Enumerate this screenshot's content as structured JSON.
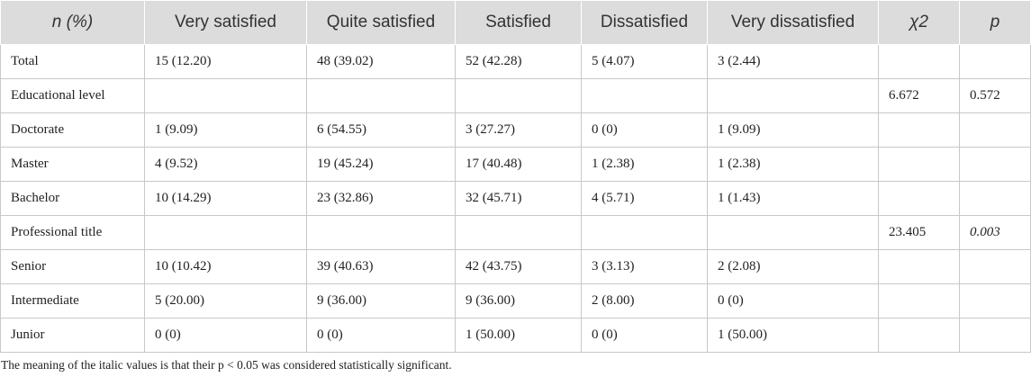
{
  "table": {
    "headers": [
      "n (%)",
      "Very satisfied",
      "Quite satisfied",
      "Satisfied",
      "Dissatisfied",
      "Very dissatisfied",
      "χ2",
      "p"
    ],
    "header_italic": [
      true,
      false,
      false,
      false,
      false,
      false,
      true,
      true
    ],
    "rows": [
      [
        "Total",
        "15 (12.20)",
        "48 (39.02)",
        "52 (42.28)",
        "5 (4.07)",
        "3 (2.44)",
        "",
        ""
      ],
      [
        "Educational level",
        "",
        "",
        "",
        "",
        "",
        "6.672",
        "0.572"
      ],
      [
        "Doctorate",
        "1 (9.09)",
        "6 (54.55)",
        "3 (27.27)",
        "0 (0)",
        "1 (9.09)",
        "",
        ""
      ],
      [
        "Master",
        "4 (9.52)",
        "19 (45.24)",
        "17 (40.48)",
        "1 (2.38)",
        "1 (2.38)",
        "",
        ""
      ],
      [
        "Bachelor",
        "10 (14.29)",
        "23 (32.86)",
        "32 (45.71)",
        "4 (5.71)",
        "1 (1.43)",
        "",
        ""
      ],
      [
        "Professional title",
        "",
        "",
        "",
        "",
        "",
        "23.405",
        "0.003"
      ],
      [
        "Senior",
        "10 (10.42)",
        "39 (40.63)",
        "42 (43.75)",
        "3 (3.13)",
        "2 (2.08)",
        "",
        ""
      ],
      [
        "Intermediate",
        "5 (20.00)",
        "9 (36.00)",
        "9 (36.00)",
        "2 (8.00)",
        "0 (0)",
        "",
        ""
      ],
      [
        "Junior",
        "0 (0)",
        "0 (0)",
        "1 (50.00)",
        "0 (0)",
        "1 (50.00)",
        "",
        ""
      ]
    ],
    "italic_cells": [
      [
        5,
        7
      ]
    ]
  },
  "footnote": "The meaning of the italic values is that their p < 0.05 was considered statistically significant.",
  "colors": {
    "header_bg": "#dcdcdc",
    "grid_line": "#c8c8c8",
    "text": "#222222"
  }
}
